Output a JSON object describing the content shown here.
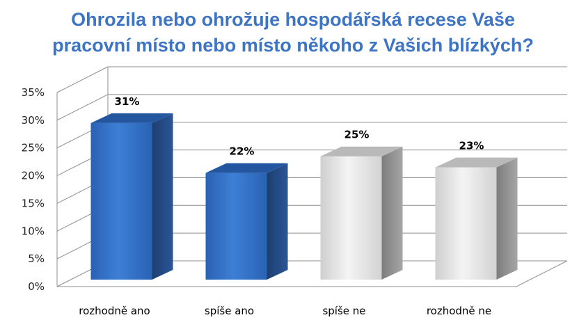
{
  "chart_data": {
    "type": "bar",
    "title_lines": [
      "Ohrozila nebo ohrožuje hospodářská  recese Vaše",
      "pracovní místo nebo místo někoho z Vašich blízkých?"
    ],
    "categories": [
      "rozhodně ano",
      "spíše ano",
      "spíše ne",
      "rozhodně ne"
    ],
    "values": [
      31,
      22,
      25,
      23
    ],
    "value_labels": [
      "31%",
      "22%",
      "25%",
      "23%"
    ],
    "bar_colors": [
      "#2f6fc4",
      "#2f6fc4",
      "#dadada",
      "#dadada"
    ],
    "ylim": [
      0,
      35
    ],
    "yticks": [
      0,
      5,
      10,
      15,
      20,
      25,
      30,
      35
    ],
    "ytick_labels": [
      "0%",
      "5%",
      "10%",
      "15%",
      "20%",
      "25%",
      "30%",
      "35%"
    ],
    "xlabel": "",
    "ylabel": "",
    "grid": true,
    "three_d": true
  }
}
